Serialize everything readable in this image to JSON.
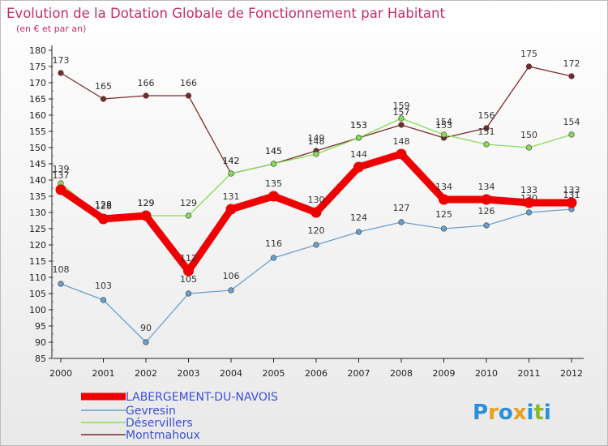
{
  "chart_data": {
    "type": "line",
    "title": "Evolution de la Dotation Globale de Fonctionnement par Habitant",
    "subtitle": "(en € et par an)",
    "xlabel": "",
    "ylabel": "",
    "ylim": [
      85,
      180
    ],
    "ytick_step": 5,
    "grid": false,
    "legend_position": "bottom-left",
    "x": [
      "2000",
      "2001",
      "2002",
      "2003",
      "2004",
      "2005",
      "2006",
      "2007",
      "2008",
      "2009",
      "2010",
      "2011",
      "2012"
    ],
    "series": [
      {
        "name": "LABERGEMENT-DU-NAVOIS",
        "color": "#ee0000",
        "values": [
          137,
          128,
          129,
          112,
          131,
          135,
          130,
          144,
          148,
          134,
          134,
          133,
          133
        ]
      },
      {
        "name": "Gevresin",
        "color": "#6aa0cf",
        "values": [
          108,
          103,
          90,
          105,
          106,
          116,
          120,
          124,
          127,
          125,
          126,
          130,
          131
        ]
      },
      {
        "name": "Déservillers",
        "color": "#88dd55",
        "values": [
          139,
          128,
          129,
          129,
          142,
          145,
          148,
          153,
          159,
          154,
          151,
          150,
          154
        ]
      },
      {
        "name": "Montmahoux",
        "color": "#7a2a2a",
        "values": [
          173,
          165,
          166,
          166,
          142,
          145,
          149,
          153,
          157,
          153,
          156,
          175,
          172
        ]
      }
    ]
  },
  "logo": {
    "text": "Proxiti",
    "letters": [
      "P",
      "r",
      "o",
      "x",
      "i",
      "t",
      "i"
    ],
    "colors": [
      "#2a8fd8",
      "#e8a020",
      "#2a8fd8",
      "#e8a020",
      "#2a8fd8",
      "#8ab830",
      "#2a8fd8"
    ]
  }
}
